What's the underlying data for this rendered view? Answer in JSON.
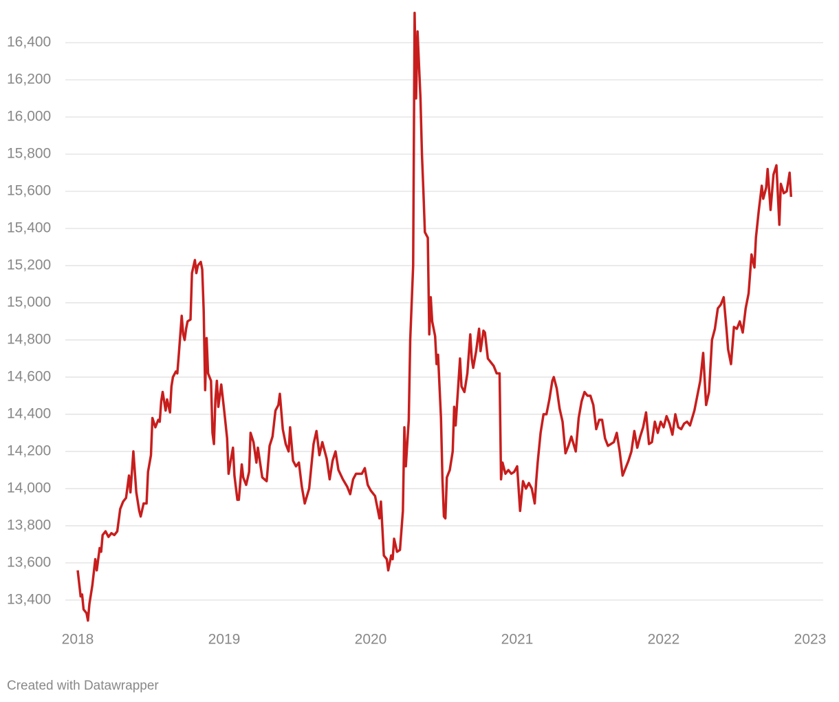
{
  "chart_data": {
    "type": "line",
    "x": [
      2018.0,
      2018.02,
      2018.03,
      2018.04,
      2018.06,
      2018.07,
      2018.08,
      2018.1,
      2018.12,
      2018.13,
      2018.15,
      2018.16,
      2018.17,
      2018.19,
      2018.21,
      2018.23,
      2018.25,
      2018.27,
      2018.29,
      2018.31,
      2018.33,
      2018.35,
      2018.36,
      2018.38,
      2018.4,
      2018.42,
      2018.43,
      2018.45,
      2018.47,
      2018.48,
      2018.5,
      2018.51,
      2018.53,
      2018.55,
      2018.56,
      2018.57,
      2018.58,
      2018.6,
      2018.61,
      2018.63,
      2018.64,
      2018.65,
      2018.67,
      2018.68,
      2018.69,
      2018.71,
      2018.72,
      2018.73,
      2018.74,
      2018.75,
      2018.77,
      2018.78,
      2018.8,
      2018.81,
      2018.82,
      2018.84,
      2018.85,
      2018.86,
      2018.87,
      2018.88,
      2018.89,
      2018.91,
      2018.92,
      2018.93,
      2018.94,
      2018.95,
      2018.96,
      2018.98,
      2019.0,
      2019.02,
      2019.03,
      2019.04,
      2019.06,
      2019.07,
      2019.09,
      2019.1,
      2019.12,
      2019.13,
      2019.15,
      2019.17,
      2019.18,
      2019.2,
      2019.22,
      2019.23,
      2019.26,
      2019.29,
      2019.31,
      2019.33,
      2019.35,
      2019.37,
      2019.38,
      2019.4,
      2019.42,
      2019.44,
      2019.45,
      2019.47,
      2019.49,
      2019.51,
      2019.53,
      2019.55,
      2019.58,
      2019.61,
      2019.63,
      2019.65,
      2019.67,
      2019.7,
      2019.72,
      2019.74,
      2019.76,
      2019.78,
      2019.81,
      2019.84,
      2019.86,
      2019.88,
      2019.9,
      2019.94,
      2019.96,
      2019.98,
      2020.0,
      2020.03,
      2020.06,
      2020.07,
      2020.09,
      2020.11,
      2020.12,
      2020.14,
      2020.15,
      2020.16,
      2020.18,
      2020.2,
      2020.22,
      2020.23,
      2020.24,
      2020.26,
      2020.27,
      2020.29,
      2020.3,
      2020.31,
      2020.32,
      2020.33,
      2020.34,
      2020.35,
      2020.36,
      2020.37,
      2020.39,
      2020.4,
      2020.41,
      2020.42,
      2020.44,
      2020.45,
      2020.46,
      2020.48,
      2020.49,
      2020.5,
      2020.51,
      2020.52,
      2020.54,
      2020.56,
      2020.57,
      2020.58,
      2020.6,
      2020.61,
      2020.62,
      2020.64,
      2020.66,
      2020.68,
      2020.69,
      2020.7,
      2020.72,
      2020.74,
      2020.75,
      2020.77,
      2020.78,
      2020.8,
      2020.82,
      2020.84,
      2020.86,
      2020.88,
      2020.89,
      2020.9,
      2020.92,
      2020.94,
      2020.96,
      2020.98,
      2021.0,
      2021.02,
      2021.04,
      2021.06,
      2021.08,
      2021.1,
      2021.12,
      2021.13,
      2021.14,
      2021.16,
      2021.18,
      2021.2,
      2021.22,
      2021.24,
      2021.25,
      2021.27,
      2021.29,
      2021.31,
      2021.33,
      2021.35,
      2021.37,
      2021.4,
      2021.42,
      2021.44,
      2021.46,
      2021.48,
      2021.5,
      2021.52,
      2021.54,
      2021.56,
      2021.58,
      2021.6,
      2021.62,
      2021.66,
      2021.68,
      2021.7,
      2021.72,
      2021.74,
      2021.76,
      2021.78,
      2021.8,
      2021.82,
      2021.84,
      2021.86,
      2021.88,
      2021.9,
      2021.92,
      2021.94,
      2021.96,
      2021.98,
      2022.0,
      2022.02,
      2022.04,
      2022.06,
      2022.08,
      2022.1,
      2022.12,
      2022.14,
      2022.16,
      2022.18,
      2022.21,
      2022.23,
      2022.25,
      2022.27,
      2022.29,
      2022.31,
      2022.33,
      2022.35,
      2022.37,
      2022.39,
      2022.41,
      2022.43,
      2022.44,
      2022.46,
      2022.48,
      2022.5,
      2022.52,
      2022.54,
      2022.56,
      2022.58,
      2022.6,
      2022.62,
      2022.63,
      2022.65,
      2022.67,
      2022.68,
      2022.7,
      2022.71,
      2022.73,
      2022.75,
      2022.77,
      2022.79,
      2022.8,
      2022.82,
      2022.84,
      2022.86,
      2022.87
    ],
    "series": [
      {
        "color": "#c71e1d",
        "values": [
          13560,
          13420,
          13430,
          13350,
          13330,
          13290,
          13380,
          13480,
          13620,
          13560,
          13680,
          13660,
          13750,
          13770,
          13740,
          13760,
          13750,
          13770,
          13890,
          13930,
          13950,
          14070,
          13980,
          14200,
          13980,
          13880,
          13850,
          13920,
          13920,
          14090,
          14180,
          14380,
          14330,
          14370,
          14360,
          14470,
          14520,
          14420,
          14480,
          14410,
          14550,
          14600,
          14630,
          14620,
          14720,
          14930,
          14830,
          14800,
          14860,
          14900,
          14910,
          15160,
          15230,
          15160,
          15200,
          15220,
          15180,
          14960,
          14530,
          14810,
          14620,
          14580,
          14300,
          14240,
          14480,
          14580,
          14440,
          14560,
          14420,
          14270,
          14080,
          14130,
          14220,
          14070,
          13940,
          13940,
          14130,
          14060,
          14020,
          14090,
          14300,
          14250,
          14140,
          14220,
          14060,
          14040,
          14230,
          14280,
          14420,
          14450,
          14510,
          14320,
          14240,
          14200,
          14330,
          14150,
          14120,
          14140,
          14010,
          13920,
          14000,
          14240,
          14310,
          14180,
          14250,
          14160,
          14050,
          14150,
          14200,
          14100,
          14050,
          14010,
          13970,
          14050,
          14080,
          14080,
          14110,
          14020,
          13990,
          13960,
          13840,
          13930,
          13640,
          13620,
          13560,
          13640,
          13620,
          13730,
          13660,
          13670,
          13880,
          14330,
          14120,
          14370,
          14800,
          15200,
          16560,
          16100,
          16460,
          16280,
          16100,
          15800,
          15600,
          15380,
          15350,
          14830,
          15030,
          14900,
          14820,
          14670,
          14720,
          14380,
          14050,
          13850,
          13840,
          14060,
          14100,
          14200,
          14440,
          14340,
          14580,
          14700,
          14550,
          14520,
          14620,
          14830,
          14700,
          14650,
          14740,
          14860,
          14740,
          14850,
          14840,
          14700,
          14680,
          14660,
          14620,
          14620,
          14050,
          14140,
          14080,
          14100,
          14080,
          14090,
          14120,
          13880,
          14040,
          14000,
          14030,
          14000,
          13920,
          14040,
          14140,
          14300,
          14400,
          14400,
          14480,
          14580,
          14600,
          14540,
          14430,
          14360,
          14190,
          14230,
          14280,
          14200,
          14380,
          14470,
          14520,
          14500,
          14500,
          14450,
          14320,
          14370,
          14370,
          14270,
          14230,
          14250,
          14300,
          14200,
          14070,
          14110,
          14150,
          14200,
          14310,
          14220,
          14280,
          14330,
          14410,
          14240,
          14250,
          14360,
          14300,
          14360,
          14330,
          14390,
          14350,
          14290,
          14400,
          14330,
          14320,
          14350,
          14360,
          14340,
          14420,
          14500,
          14580,
          14730,
          14450,
          14520,
          14800,
          14860,
          14970,
          14990,
          15030,
          14850,
          14750,
          14670,
          14870,
          14860,
          14900,
          14840,
          14970,
          15050,
          15260,
          15190,
          15350,
          15500,
          15630,
          15560,
          15620,
          15720,
          15500,
          15690,
          15740,
          15420,
          15640,
          15590,
          15600,
          15700,
          15570
        ]
      }
    ],
    "xlim": [
      2018,
      2023
    ],
    "xticks": [
      2018,
      2019,
      2020,
      2021,
      2022,
      2023
    ],
    "ylim": [
      13270,
      16560
    ],
    "yticks": [
      {
        "value": 13400,
        "label": "13,400"
      },
      {
        "value": 13600,
        "label": "13,600"
      },
      {
        "value": 13800,
        "label": "13,800"
      },
      {
        "value": 14000,
        "label": "14,000"
      },
      {
        "value": 14200,
        "label": "14,200"
      },
      {
        "value": 14400,
        "label": "14,400"
      },
      {
        "value": 14600,
        "label": "14,600"
      },
      {
        "value": 14800,
        "label": "14,800"
      },
      {
        "value": 15000,
        "label": "15,000"
      },
      {
        "value": 15200,
        "label": "15,200"
      },
      {
        "value": 15400,
        "label": "15,400"
      },
      {
        "value": 15600,
        "label": "15,600"
      },
      {
        "value": 15800,
        "label": "15,800"
      },
      {
        "value": 16000,
        "label": "16,000"
      },
      {
        "value": 16200,
        "label": "16,200"
      },
      {
        "value": 16400,
        "label": "16,400"
      }
    ],
    "grid": true,
    "footer": "Created with Datawrapper"
  }
}
